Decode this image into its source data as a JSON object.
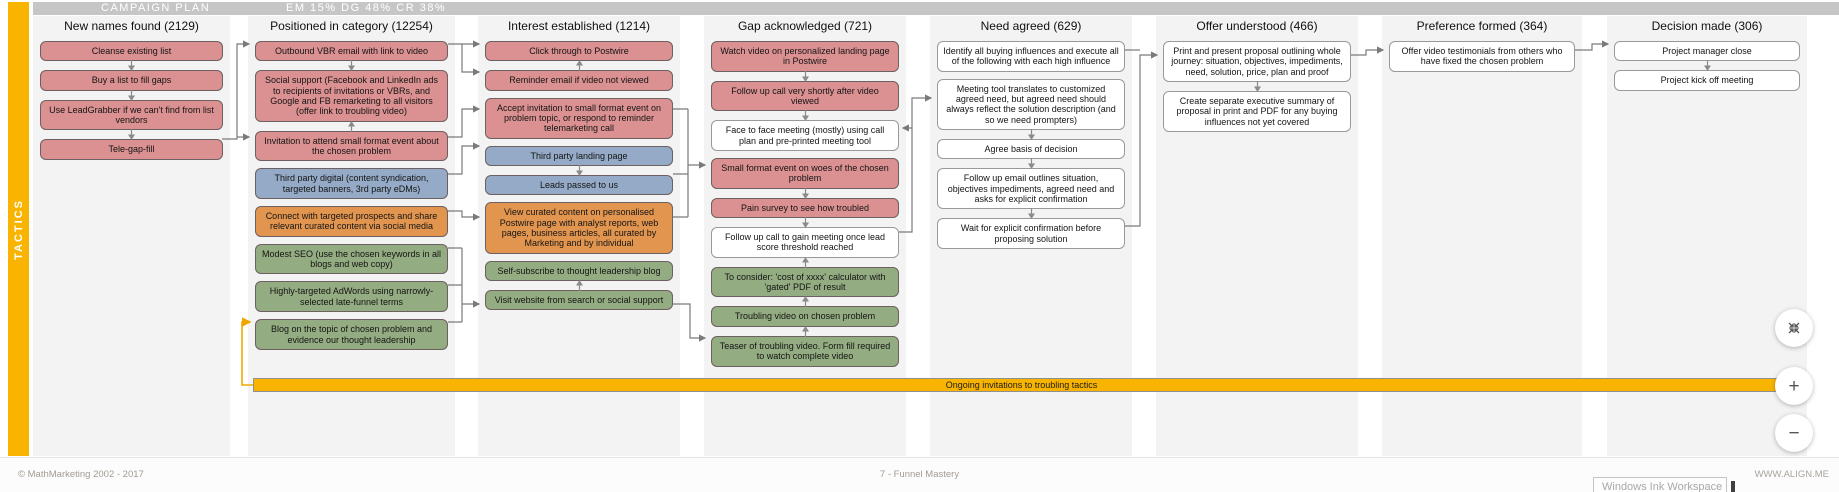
{
  "header": {
    "campaign_label": "CAMPAIGN PLAN",
    "metrics_label": "EM 15% DG 48% CR 38%"
  },
  "tactics_label": "TACTICS",
  "colors": {
    "pink": "#db9191",
    "blue": "#94aac6",
    "orange": "#e2954f",
    "green": "#94ac81",
    "white": "#ffffff",
    "yellow": "#f8b400",
    "header_grey": "#c6c6c6"
  },
  "columns": [
    {
      "title": "New names found (2129)",
      "boxes": [
        {
          "text": "Cleanse existing list",
          "color": "pink",
          "arrow_after": "down"
        },
        {
          "text": "Buy a list to fill gaps",
          "color": "pink",
          "arrow_after": "down"
        },
        {
          "text": "Use LeadGrabber if we can't find from list vendors",
          "color": "pink",
          "arrow_after": "down"
        },
        {
          "text": "Tele-gap-fill",
          "color": "pink",
          "arrow_after": "none"
        }
      ]
    },
    {
      "title": "Positioned in category (12254)",
      "boxes": [
        {
          "text": "Outbound VBR email with link to video",
          "color": "pink",
          "arrow_after": "down"
        },
        {
          "text": "Social support (Facebook and LinkedIn ads to recipients of invitations or VBRs, and Google and FB remarketing to all visitors (offer link to troubling video)",
          "color": "pink",
          "arrow_after": "up"
        },
        {
          "text": "Invitation to attend small format event about the chosen problem",
          "color": "pink",
          "arrow_after": "none"
        },
        {
          "text": "Third party digital (content syndication, targeted banners, 3rd party eDMs)",
          "color": "blue",
          "arrow_after": "none"
        },
        {
          "text": "Connect with targeted prospects and share relevant curated content via social media",
          "color": "orange",
          "arrow_after": "none"
        },
        {
          "text": "Modest SEO (use the chosen keywords in all blogs and web copy)",
          "color": "green",
          "arrow_after": "none"
        },
        {
          "text": "Highly-targeted AdWords using narrowly-selected late-funnel terms",
          "color": "green",
          "arrow_after": "none"
        },
        {
          "text": "Blog on the topic of chosen problem and evidence our thought leadership",
          "color": "green",
          "arrow_after": "none"
        }
      ]
    },
    {
      "title": "Interest established (1214)",
      "boxes": [
        {
          "text": "Click through to Postwire",
          "color": "pink",
          "arrow_after": "up"
        },
        {
          "text": "Reminder email if video not viewed",
          "color": "pink",
          "arrow_after": "none"
        },
        {
          "text": "Accept invitation to small format event on problem topic, or respond to reminder telemarketing call",
          "color": "pink",
          "arrow_after": "none"
        },
        {
          "text": "Third party landing page",
          "color": "blue",
          "arrow_after": "down"
        },
        {
          "text": "Leads passed to us",
          "color": "blue",
          "arrow_after": "none"
        },
        {
          "text": "View curated content on personalised Postwire page with analyst reports, web pages, business articles, all curated by Marketing and by individual",
          "color": "orange",
          "arrow_after": "none"
        },
        {
          "text": "Self-subscribe to thought leadership blog",
          "color": "green",
          "arrow_after": "up"
        },
        {
          "text": "Visit website from search or social support",
          "color": "green",
          "arrow_after": "none"
        }
      ]
    },
    {
      "title": "Gap acknowledged (721)",
      "boxes": [
        {
          "text": "Watch video on personalized landing page in Postwire",
          "color": "pink",
          "arrow_after": "down"
        },
        {
          "text": "Follow up call very shortly after video viewed",
          "color": "pink",
          "arrow_after": "down"
        },
        {
          "text": "Face to face meeting (mostly) using call plan and pre-printed meeting tool",
          "color": "white",
          "arrow_after": "none"
        },
        {
          "text": "Small format event on woes of the chosen problem",
          "color": "pink",
          "arrow_after": "down"
        },
        {
          "text": "Pain survey to see how troubled",
          "color": "pink",
          "arrow_after": "down"
        },
        {
          "text": "Follow up call to gain meeting once lead score threshold reached",
          "color": "white",
          "arrow_after": "up"
        },
        {
          "text": "To consider: 'cost of xxxx' calculator with 'gated' PDF of result",
          "color": "green",
          "arrow_after": "up"
        },
        {
          "text": "Troubling video on chosen problem",
          "color": "green",
          "arrow_after": "up"
        },
        {
          "text": "Teaser of troubling video. Form fill required to watch complete video",
          "color": "green",
          "arrow_after": "none"
        }
      ]
    },
    {
      "title": "Need agreed (629)",
      "boxes": [
        {
          "text": "Identify all buying influences and execute all of the following with each high influence",
          "color": "white",
          "arrow_after": "none"
        },
        {
          "text": "Meeting tool translates to customized agreed need, but agreed need should always reflect the solution description (and so we need prompters)",
          "color": "white",
          "arrow_after": "down"
        },
        {
          "text": "Agree basis of decision",
          "color": "white",
          "arrow_after": "down"
        },
        {
          "text": "Follow up email outlines situation, objectives impediments, agreed need and asks for explicit confirmation",
          "color": "white",
          "arrow_after": "down"
        },
        {
          "text": "Wait for explicit confirmation before proposing solution",
          "color": "white",
          "arrow_after": "none"
        }
      ]
    },
    {
      "title": "Offer understood (466)",
      "boxes": [
        {
          "text": "Print and present proposal outlining whole journey: situation, objectives, impediments, need, solution, price, plan and proof",
          "color": "white",
          "arrow_after": "down"
        },
        {
          "text": "Create separate executive summary of proposal in print and PDF for any buying influences not yet covered",
          "color": "white",
          "arrow_after": "none"
        }
      ]
    },
    {
      "title": "Preference formed (364)",
      "boxes": [
        {
          "text": "Offer video testimonials from others who have fixed the chosen problem",
          "color": "white",
          "arrow_after": "none"
        }
      ]
    },
    {
      "title": "Decision made (306)",
      "boxes": [
        {
          "text": "Project manager close",
          "color": "white",
          "arrow_after": "down"
        },
        {
          "text": "Project kick off meeting",
          "color": "white",
          "arrow_after": "none"
        }
      ]
    }
  ],
  "ongoing_bar": {
    "label": "Ongoing invitations to troubling tactics"
  },
  "zoom_controls": {
    "zoom_in_label": "+",
    "zoom_out_label": "−"
  },
  "footer": {
    "copyright": "© MathMarketing 2002 - 2017",
    "center": "7 - Funnel Mastery",
    "right": "WWW.ALIGN.ME"
  },
  "tooltip": {
    "text": "Windows Ink Workspace"
  }
}
